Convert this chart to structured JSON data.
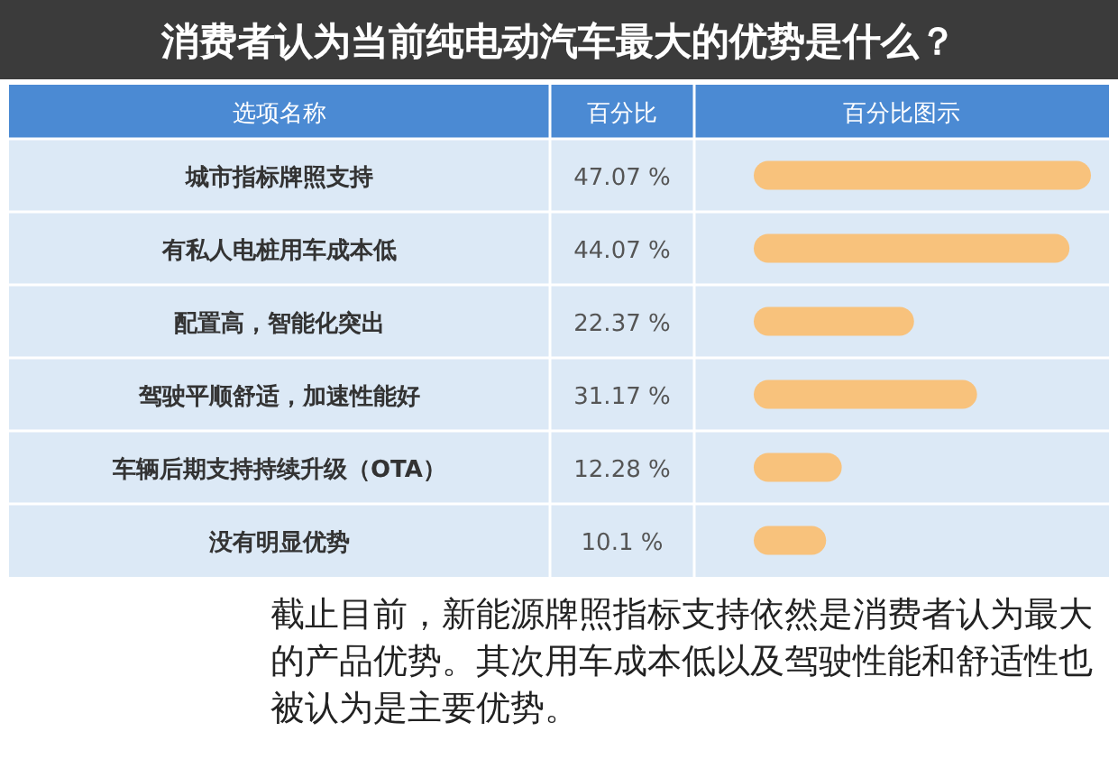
{
  "chart_data": {
    "type": "bar",
    "orientation": "horizontal",
    "title": "消费者认为当前纯电动汽车最大的优势是什么？",
    "ylabel": "选项名称",
    "xlabel": "百分比图示",
    "categories": [
      "城市指标牌照支持",
      "有私人电桩用车成本低",
      "配置高，智能化突出",
      "驾驶平顺舒适，加速性能好",
      "车辆后期支持持续升级（OTA）",
      "没有明显优势"
    ],
    "values": [
      47.07,
      44.07,
      22.37,
      31.17,
      12.28,
      10.1
    ],
    "value_labels": [
      "47.07 %",
      "44.07 %",
      "22.37 %",
      "31.17 %",
      "12.28 %",
      "10.1 %"
    ],
    "color": "#f8c27c",
    "annotations": [
      "百分比",
      "截止目前，新能源牌照指标支持依然是消费者认为最大的产品优势。其次用车成本低以及驾驶性能和舒适性也被认为是主要优势。"
    ]
  }
}
